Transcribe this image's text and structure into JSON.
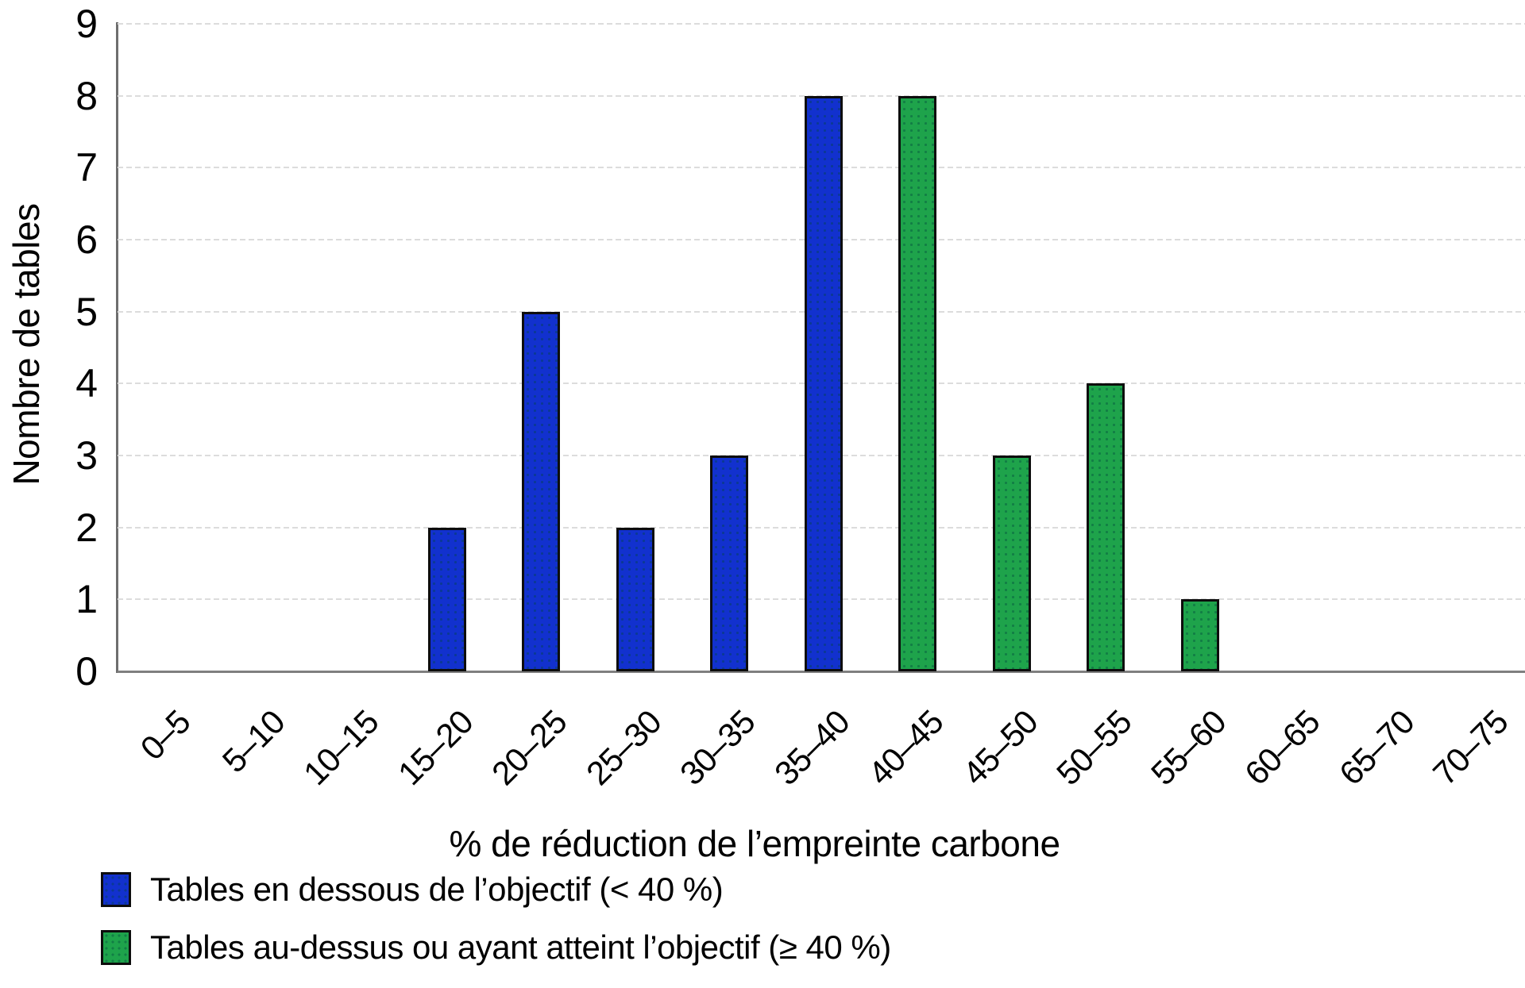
{
  "chart_data": {
    "type": "bar",
    "title": "",
    "xlabel": "% de réduction de l’empreinte carbone",
    "ylabel": "Nombre de tables",
    "ylim": [
      0,
      9
    ],
    "yticks": [
      0,
      1,
      2,
      3,
      4,
      5,
      6,
      7,
      8,
      9
    ],
    "grid": "horizontal",
    "legend_position": "bottom-left",
    "categories": [
      "0–5",
      "5–10",
      "10–15",
      "15–20",
      "20–25",
      "25–30",
      "30–35",
      "35–40",
      "40–45",
      "45–50",
      "50–55",
      "55–60",
      "60–65",
      "65–70",
      "70–75"
    ],
    "values": [
      0,
      0,
      0,
      2,
      5,
      2,
      3,
      8,
      8,
      3,
      4,
      1,
      0,
      0,
      0
    ],
    "series": [
      {
        "name": "Tables en dessous de l’objectif (< 40 %)",
        "color": "#1231CE",
        "values": [
          0,
          0,
          0,
          2,
          5,
          2,
          3,
          8,
          0,
          0,
          0,
          0,
          0,
          0,
          0
        ]
      },
      {
        "name": "Tables au-dessus ou ayant atteint l’objectif (≥ 40 %)",
        "color": "#1EA34B",
        "values": [
          0,
          0,
          0,
          0,
          0,
          0,
          0,
          0,
          8,
          3,
          4,
          1,
          0,
          0,
          0
        ]
      }
    ]
  },
  "colors": {
    "bar_blue": "#1231CE",
    "bar_green": "#1EA34B",
    "bar_outline": "#0d0d0d",
    "gridline": "#dcdcdc",
    "axis_line": "#7f7f7f",
    "text": "#000000"
  }
}
